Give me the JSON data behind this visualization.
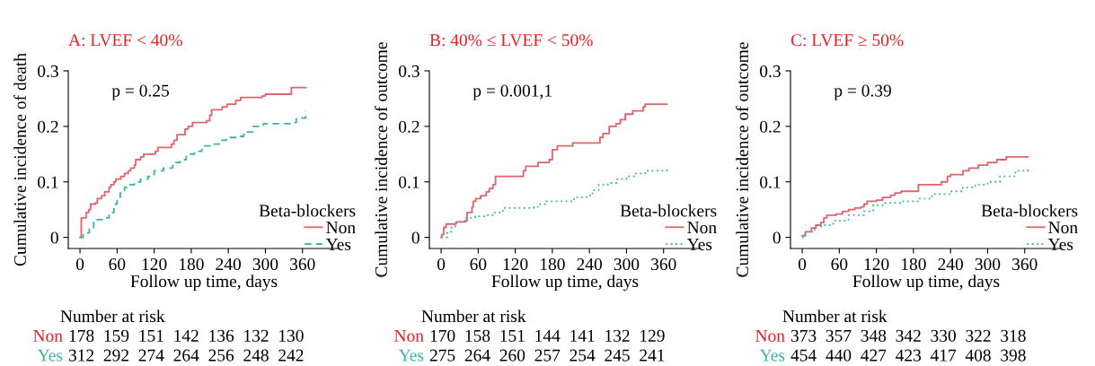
{
  "chart_data": [
    {
      "type": "step",
      "title": "A: LVEF < 40%",
      "xlabel": "Follow up time, days",
      "ylabel": "Cumulative incidence of death",
      "legend_title": "Beta-blockers",
      "legend": "bottom right",
      "grid": false,
      "xlim": [
        -19,
        420
      ],
      "ylim": [
        -0.02,
        0.3
      ],
      "xticks": [
        0,
        60,
        120,
        180,
        240,
        300,
        360
      ],
      "yticks": [
        0,
        0.1,
        0.2,
        0.3
      ],
      "annotations": [
        "p = 0.25",
        "Number at risk",
        "Non",
        "178  159  151  142  136  132  130",
        "Yes",
        "312  292  274  264  256  248  242"
      ],
      "series": [
        {
          "name": "Non",
          "color": "#e2636a",
          "line_style": "solid",
          "x": [
            0,
            2,
            10,
            14,
            17,
            25,
            28,
            35,
            40,
            47,
            50,
            55,
            58,
            66,
            72,
            78,
            82,
            88,
            90,
            98,
            103,
            122,
            126,
            148,
            152,
            157,
            170,
            175,
            182,
            205,
            210,
            213,
            230,
            238,
            252,
            260,
            295,
            300,
            342,
            365
          ],
          "values": [
            0,
            0.035,
            0.045,
            0.05,
            0.06,
            0.062,
            0.07,
            0.075,
            0.082,
            0.09,
            0.095,
            0.1,
            0.105,
            0.11,
            0.115,
            0.12,
            0.125,
            0.13,
            0.14,
            0.145,
            0.15,
            0.155,
            0.162,
            0.168,
            0.175,
            0.185,
            0.195,
            0.2,
            0.207,
            0.21,
            0.22,
            0.23,
            0.235,
            0.24,
            0.247,
            0.252,
            0.255,
            0.258,
            0.27,
            0.27
          ]
        },
        {
          "name": "Yes",
          "color": "#3bb3a5",
          "line_style": "dashed",
          "x": [
            0,
            5,
            15,
            22,
            42,
            47,
            55,
            60,
            65,
            72,
            78,
            88,
            98,
            110,
            120,
            135,
            150,
            162,
            172,
            185,
            197,
            215,
            225,
            237,
            255,
            265,
            280,
            297,
            340,
            350,
            365
          ],
          "values": [
            0,
            0.008,
            0.015,
            0.032,
            0.035,
            0.045,
            0.06,
            0.07,
            0.08,
            0.09,
            0.095,
            0.1,
            0.105,
            0.11,
            0.12,
            0.125,
            0.135,
            0.14,
            0.15,
            0.155,
            0.165,
            0.168,
            0.175,
            0.18,
            0.182,
            0.19,
            0.2,
            0.205,
            0.207,
            0.215,
            0.228
          ]
        }
      ]
    },
    {
      "type": "step",
      "title": "B: 40% ≤ LVEF < 50%",
      "xlabel": "Follow up time, days",
      "ylabel": "Cumulative incidence of outcome",
      "legend_title": "Beta-blockers",
      "legend": "bottom right",
      "grid": false,
      "xlim": [
        -19,
        420
      ],
      "ylim": [
        -0.02,
        0.3
      ],
      "xticks": [
        0,
        60,
        120,
        180,
        240,
        300,
        360
      ],
      "yticks": [
        0,
        0.1,
        0.2,
        0.3
      ],
      "annotations": [
        "p = 0.001,1",
        "Number at risk",
        "Non",
        "170  158  151  144  141  132  129",
        "Yes",
        "275  264  260  257  254  245  241"
      ],
      "series": [
        {
          "name": "Non",
          "color": "#e2636a",
          "line_style": "solid",
          "x": [
            0,
            1,
            4,
            8,
            24,
            38,
            42,
            50,
            52,
            56,
            64,
            73,
            78,
            84,
            88,
            133,
            137,
            157,
            175,
            180,
            188,
            213,
            257,
            262,
            272,
            283,
            290,
            298,
            310,
            327,
            330,
            365
          ],
          "values": [
            0,
            0.005,
            0.018,
            0.024,
            0.028,
            0.03,
            0.045,
            0.055,
            0.065,
            0.07,
            0.075,
            0.082,
            0.088,
            0.095,
            0.11,
            0.12,
            0.128,
            0.135,
            0.14,
            0.158,
            0.165,
            0.17,
            0.18,
            0.187,
            0.2,
            0.205,
            0.212,
            0.222,
            0.228,
            0.235,
            0.24,
            0.24
          ]
        },
        {
          "name": "Yes",
          "color": "#3bb3a5",
          "line_style": "dotted",
          "x": [
            0,
            10,
            17,
            25,
            40,
            55,
            70,
            85,
            100,
            150,
            160,
            170,
            215,
            235,
            245,
            255,
            270,
            285,
            300,
            315,
            330,
            365
          ],
          "values": [
            0,
            0.01,
            0.02,
            0.028,
            0.035,
            0.038,
            0.04,
            0.045,
            0.053,
            0.055,
            0.06,
            0.065,
            0.072,
            0.075,
            0.085,
            0.095,
            0.098,
            0.105,
            0.11,
            0.115,
            0.12,
            0.125
          ]
        }
      ]
    },
    {
      "type": "step",
      "title": "C: LVEF ≥ 50%",
      "xlabel": "Follow up time, days",
      "ylabel": "Cumulative incidence of outcome",
      "legend_title": "Beta-blockers",
      "legend": "bottom right",
      "grid": false,
      "xlim": [
        -19,
        420
      ],
      "ylim": [
        -0.02,
        0.3
      ],
      "xticks": [
        0,
        60,
        120,
        180,
        240,
        300,
        360
      ],
      "yticks": [
        0,
        0.1,
        0.2,
        0.3
      ],
      "annotations": [
        "p = 0.39",
        "Number at risk",
        "Non",
        "373  357  348  342  330  322  318",
        "Yes",
        "454  440  427  423  417  408  398"
      ],
      "series": [
        {
          "name": "Non",
          "color": "#e2636a",
          "line_style": "solid",
          "x": [
            0,
            5,
            15,
            22,
            30,
            35,
            40,
            55,
            65,
            75,
            85,
            95,
            100,
            105,
            120,
            130,
            143,
            150,
            160,
            188,
            225,
            235,
            240,
            260,
            270,
            285,
            300,
            315,
            330,
            365
          ],
          "values": [
            0.003,
            0.01,
            0.017,
            0.022,
            0.027,
            0.035,
            0.04,
            0.042,
            0.047,
            0.05,
            0.053,
            0.055,
            0.06,
            0.065,
            0.067,
            0.072,
            0.076,
            0.08,
            0.083,
            0.095,
            0.1,
            0.11,
            0.113,
            0.12,
            0.125,
            0.13,
            0.135,
            0.14,
            0.145,
            0.145
          ]
        },
        {
          "name": "Yes",
          "color": "#3bb3a5",
          "line_style": "dotted",
          "x": [
            0,
            5,
            20,
            35,
            50,
            75,
            100,
            115,
            130,
            160,
            190,
            210,
            240,
            260,
            280,
            300,
            320,
            345,
            365
          ],
          "values": [
            0,
            0.01,
            0.02,
            0.022,
            0.03,
            0.04,
            0.047,
            0.058,
            0.062,
            0.065,
            0.07,
            0.078,
            0.083,
            0.09,
            0.095,
            0.1,
            0.11,
            0.12,
            0.123
          ]
        }
      ]
    }
  ]
}
